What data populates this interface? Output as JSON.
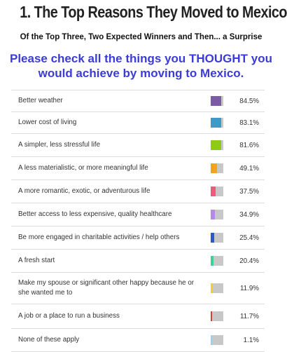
{
  "title": "1. The Top Reasons They Moved to Mexico",
  "subtitle": "Of the Top Three, Two Expected Winners and Then...  a Surprise",
  "question": "Please check all the things you THOUGHT you would achieve by moving to Mexico.",
  "chart_data": {
    "type": "bar",
    "categories": [
      "Better weather",
      "Lower cost of living",
      "A simpler, less stressful life",
      "A less materialistic, or more meaningful life",
      "A more romantic, exotic, or adventurous life",
      "Better access to less expensive, quality healthcare",
      "Be more engaged in charitable activities / help others",
      "A fresh start",
      "Make my spouse or significant other happy because he or she wanted me to",
      "A job or a place to run a business",
      "None of these apply"
    ],
    "values": [
      84.5,
      83.1,
      81.6,
      49.1,
      37.5,
      34.9,
      25.4,
      20.4,
      11.9,
      11.7,
      1.1
    ],
    "value_labels": [
      "84.5%",
      "83.1%",
      "81.6%",
      "49.1%",
      "37.5%",
      "34.9%",
      "25.4%",
      "20.4%",
      "11.9%",
      "11.7%",
      "1.1%"
    ],
    "colors": [
      "#7b5aa6",
      "#3c9bc9",
      "#8fcb16",
      "#f5a31a",
      "#ee5a7e",
      "#b58ae6",
      "#2c59c9",
      "#3fcf98",
      "#f3d028",
      "#c9473a",
      "#9bd0e8"
    ],
    "xlim": [
      0,
      100
    ]
  }
}
